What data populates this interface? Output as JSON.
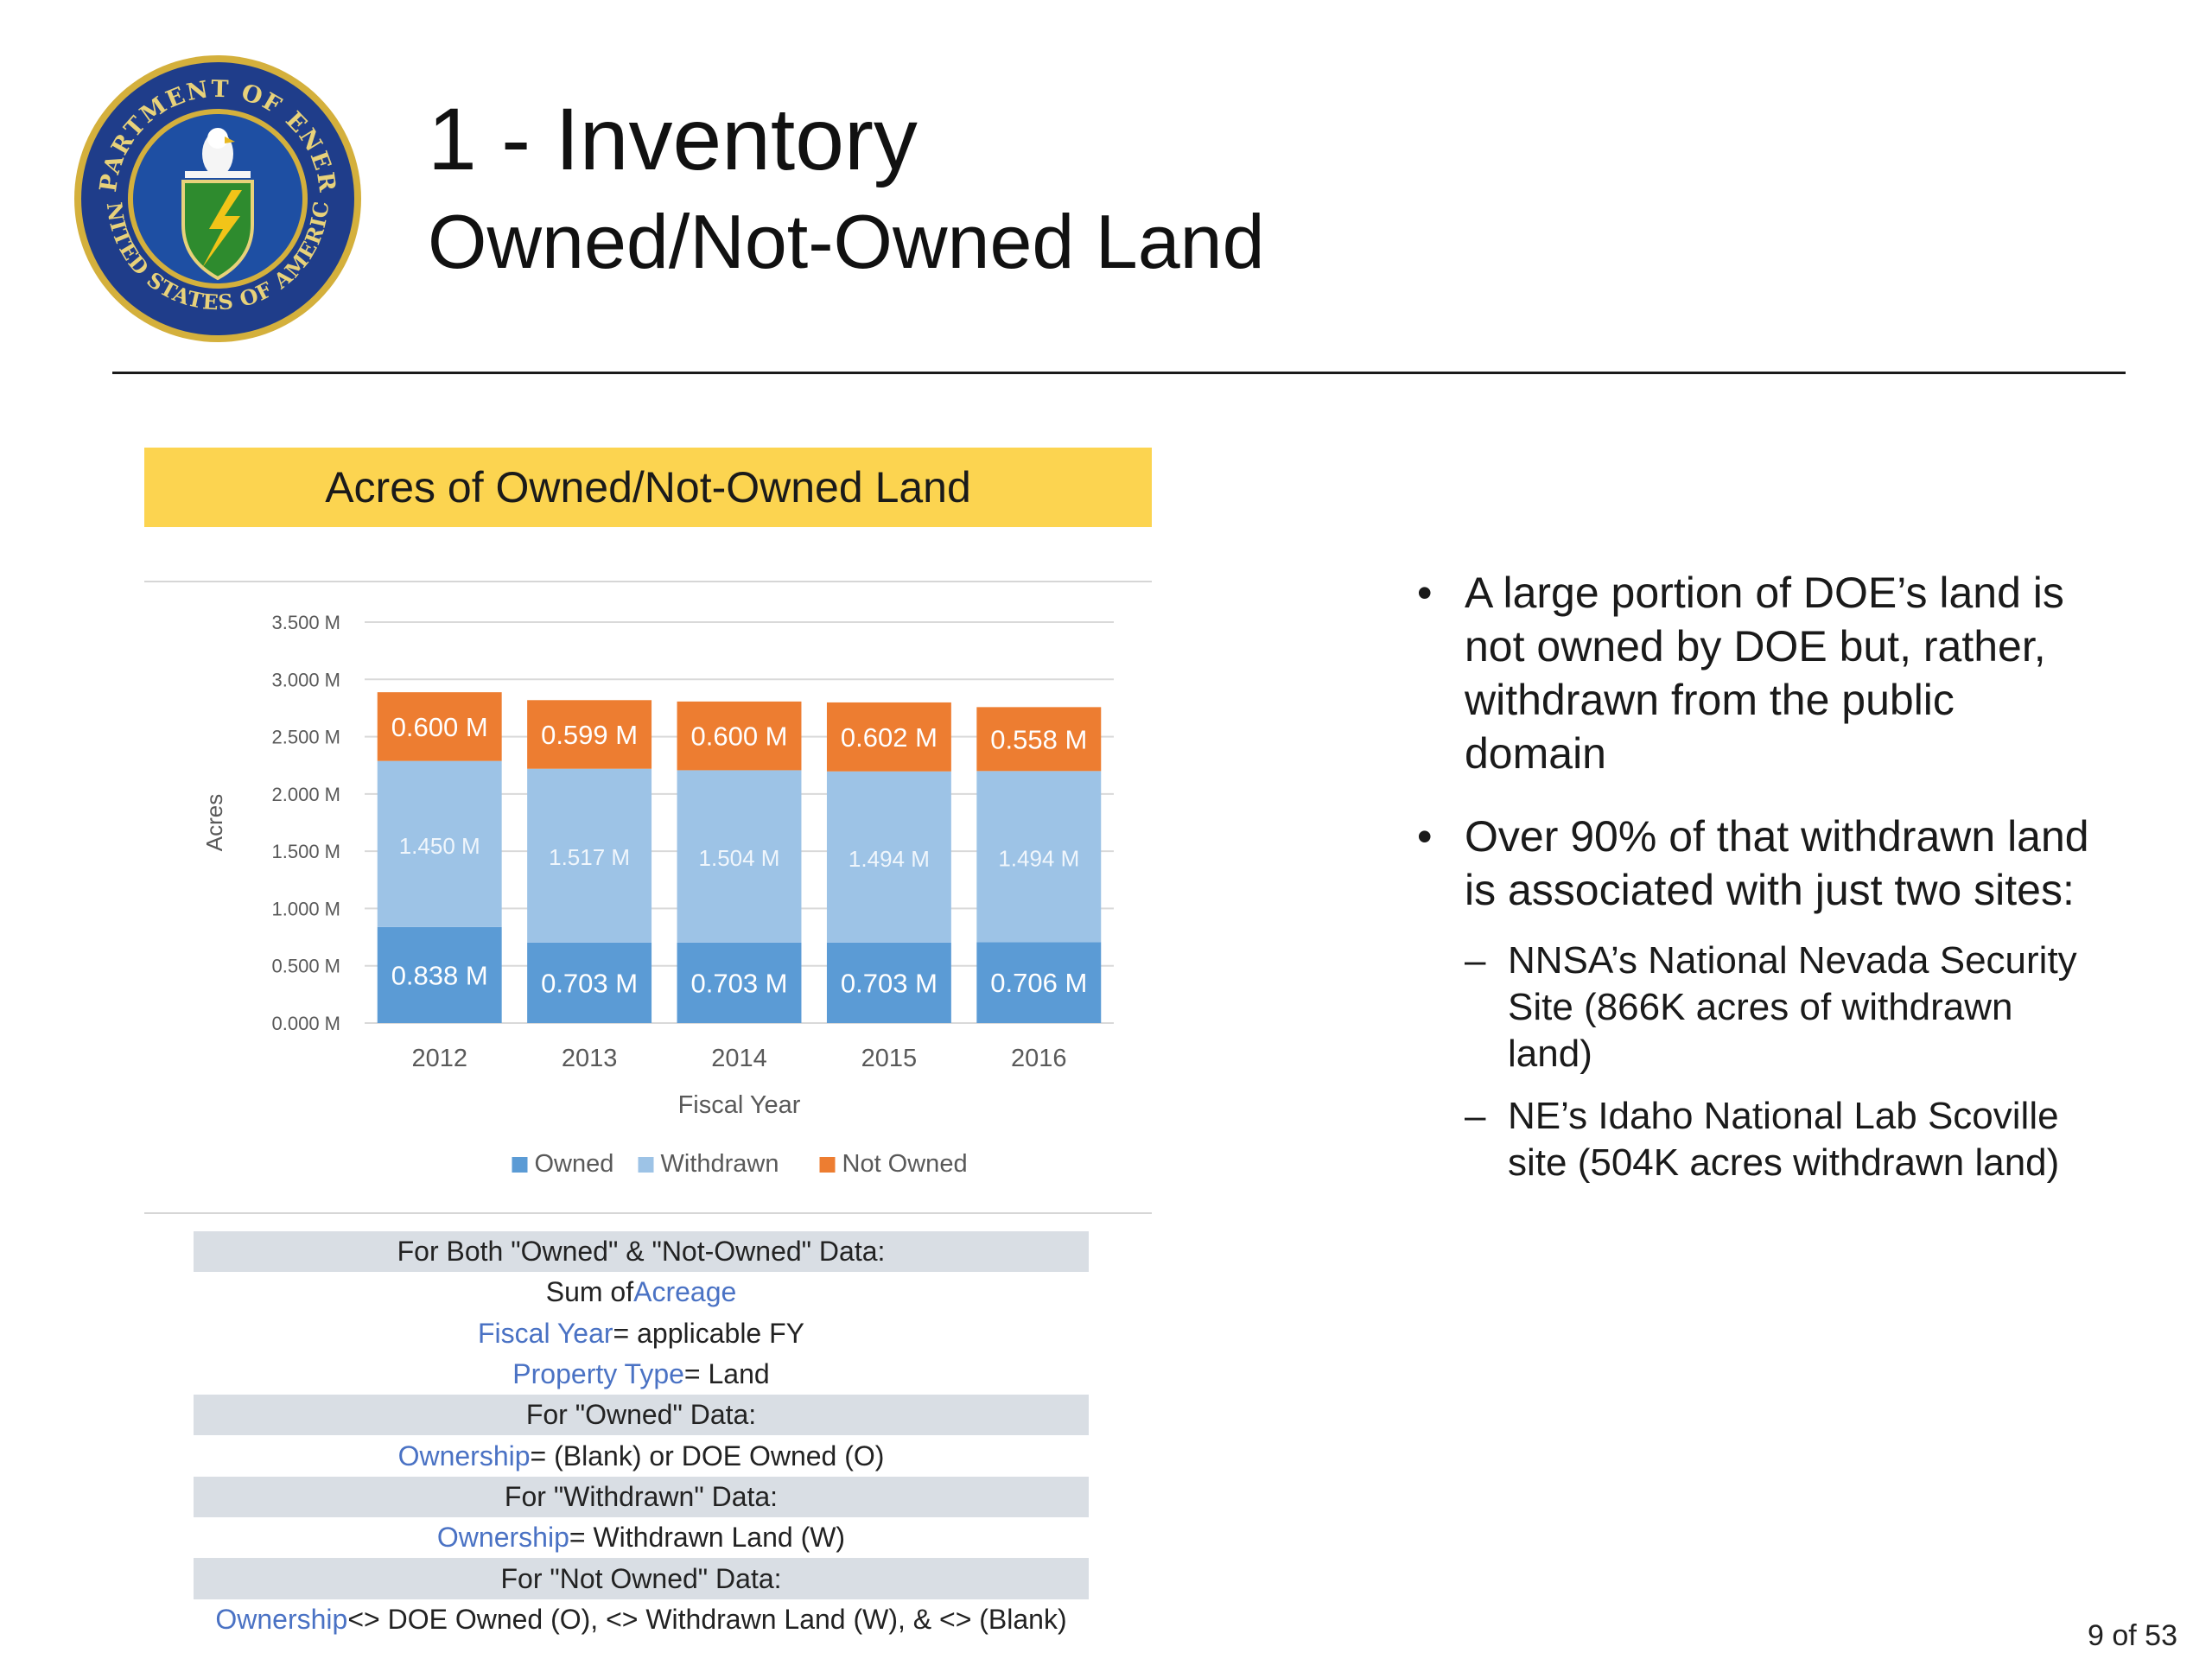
{
  "header": {
    "title": "1 - Inventory",
    "subtitle": "Owned/Not-Owned Land"
  },
  "chart_data": {
    "type": "bar",
    "stacked": true,
    "title": "Acres of Owned/Not-Owned Land",
    "xlabel": "Fiscal Year",
    "ylabel": "Acres",
    "categories": [
      "2012",
      "2013",
      "2014",
      "2015",
      "2016"
    ],
    "ylim": [
      0,
      3.5
    ],
    "yticks": [
      "0.000 M",
      "0.500 M",
      "1.000 M",
      "1.500 M",
      "2.000 M",
      "2.500 M",
      "3.000 M",
      "3.500 M"
    ],
    "legend_position": "bottom",
    "grid": true,
    "series": [
      {
        "name": "Owned",
        "color": "#5b9bd5",
        "values": [
          0.838,
          0.703,
          0.703,
          0.703,
          0.706
        ],
        "labels": [
          "0.838 M",
          "0.703 M",
          "0.703 M",
          "0.703 M",
          "0.706 M"
        ]
      },
      {
        "name": "Withdrawn",
        "color": "#9dc3e6",
        "values": [
          1.45,
          1.517,
          1.504,
          1.494,
          1.494
        ],
        "labels": [
          "1.450 M",
          "1.517 M",
          "1.504 M",
          "1.494 M",
          "1.494 M"
        ]
      },
      {
        "name": "Not Owned",
        "color": "#ed7d31",
        "values": [
          0.6,
          0.599,
          0.6,
          0.602,
          0.558
        ],
        "labels": [
          "0.600 M",
          "0.599 M",
          "0.600 M",
          "0.602 M",
          "0.558 M"
        ]
      }
    ]
  },
  "criteria": {
    "both_header": "For Both \"Owned\" & \"Not-Owned\" Data:",
    "sum_pre": "Sum of ",
    "sum_field": "Acreage",
    "fy_field": "Fiscal Year",
    "fy_post": " = applicable FY",
    "pt_field": "Property Type",
    "pt_post": " = Land",
    "owned_header": "For \"Owned\" Data:",
    "owned_field": "Ownership",
    "owned_post": " = (Blank) or DOE Owned (O)",
    "withdrawn_header": "For  \"Withdrawn\" Data:",
    "withdrawn_field": "Ownership",
    "withdrawn_post": " = Withdrawn Land (W)",
    "notowned_header": "For \"Not Owned\" Data:",
    "notowned_field": "Ownership",
    "notowned_post": " <> DOE Owned (O), <> Withdrawn Land (W), & <> (Blank)"
  },
  "bullets": {
    "b1": "A large portion of DOE’s land is not owned by DOE but, rather, withdrawn from the public domain",
    "b2": "Over 90% of that withdrawn land is associated with just two sites:",
    "s1": "NNSA’s National Nevada Security Site (866K acres of withdrawn land)",
    "s2": "NE’s Idaho National Lab Scoville site (504K acres withdrawn land)"
  },
  "footer": {
    "page": "9 of 53"
  },
  "logo": {
    "text_top": "DEPARTMENT OF ENERGY",
    "text_bottom": "UNITED STATES OF AMERICA",
    "colors": {
      "ring": "#1f3d8a",
      "gold": "#d4b03c",
      "shield": "#2e8b2e",
      "bolt": "#f2c418"
    }
  }
}
